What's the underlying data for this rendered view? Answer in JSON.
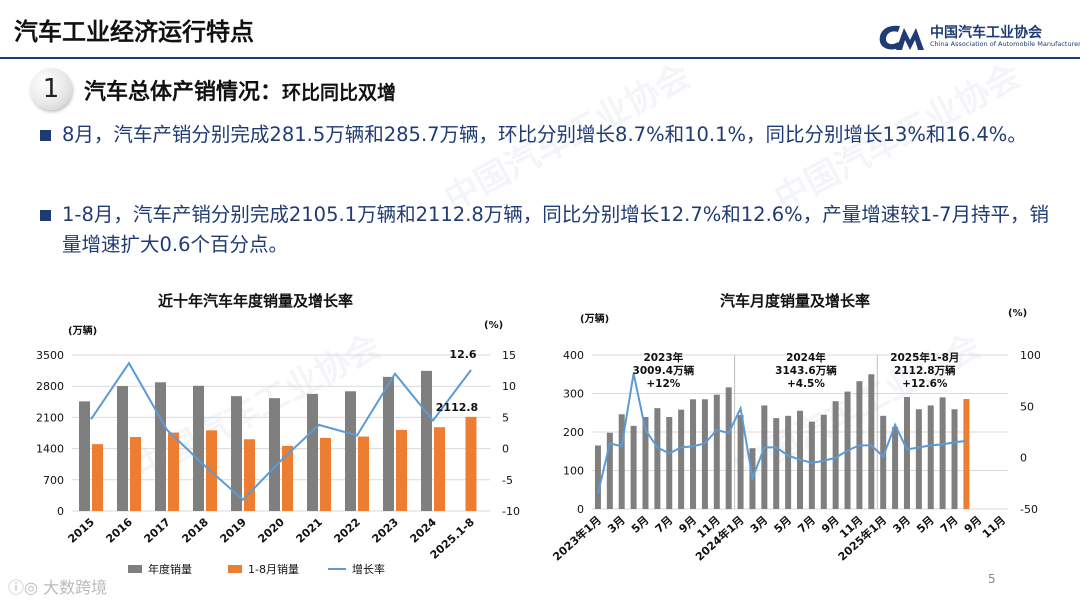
{
  "header": {
    "title": "汽车工业经济运行特点",
    "logo_cn": "中国汽车工业协会",
    "logo_en": "China Association of Automobile Manufacturers",
    "brand_color": "#1f3b73"
  },
  "section": {
    "number": "1",
    "title": "汽车总体产销情况：",
    "subtitle": "环比同比双增"
  },
  "bullets": [
    "8月，汽车产销分别完成281.5万辆和285.7万辆，环比分别增长8.7%和10.1%，同比分别增长13%和16.4%。",
    "1-8月，汽车产销分别完成2105.1万辆和2112.8万辆，同比分别增长12.7%和12.6%，产量增速较1-7月持平，销量增速扩大0.6个百分点。"
  ],
  "page_number": "5",
  "footer_watermark": "大数跨境",
  "colors": {
    "gray_bar": "#7f7f7f",
    "orange_bar": "#ed7d31",
    "line": "#5b9bd5",
    "highlight_bar": "#ed7d31"
  },
  "chart_data": [
    {
      "type": "bar",
      "title": "近十年汽车年度销量及增长率",
      "ylabel": "(万辆)",
      "y2label": "(%)",
      "ylim": [
        0,
        3500
      ],
      "y2lim": [
        -10,
        15
      ],
      "yticks": [
        "0",
        "700",
        "1400",
        "2100",
        "2800",
        "3500"
      ],
      "y2ticks": [
        "-10",
        "-5",
        "0",
        "5",
        "10",
        "15"
      ],
      "categories": [
        "2015",
        "2016",
        "2017",
        "2018",
        "2019",
        "2020",
        "2021",
        "2022",
        "2023",
        "2024",
        "2025.1-8"
      ],
      "series": [
        {
          "name": "年度销量",
          "kind": "bar",
          "color": "#7f7f7f",
          "values": [
            2460,
            2803,
            2888,
            2808,
            2577,
            2531,
            2628,
            2686,
            3009,
            3144,
            null
          ]
        },
        {
          "name": "1-8月销量",
          "kind": "bar",
          "color": "#ed7d31",
          "values": [
            1500,
            1660,
            1760,
            1810,
            1610,
            1460,
            1640,
            1670,
            1820,
            1880,
            2112.8
          ]
        },
        {
          "name": "增长率",
          "kind": "line",
          "axis": "y2",
          "color": "#5b9bd5",
          "values": [
            4.7,
            13.7,
            3.0,
            -2.8,
            -8.2,
            -1.9,
            3.8,
            2.1,
            12.0,
            4.5,
            12.6
          ]
        }
      ],
      "labels": {
        "last_bar": "2112.8",
        "last_rate": "12.6"
      },
      "legend": "bottom"
    },
    {
      "type": "bar",
      "title": "汽车月度销量及增长率",
      "ylabel": "(万辆)",
      "y2label": "(%)",
      "ylim": [
        0,
        400
      ],
      "y2lim": [
        -50,
        100
      ],
      "yticks": [
        "0",
        "100",
        "200",
        "300",
        "400"
      ],
      "y2ticks": [
        "-50",
        "0",
        "50",
        "100"
      ],
      "xtick_labels": [
        "2023年1月",
        "3月",
        "5月",
        "7月",
        "9月",
        "11月",
        "2024年1月",
        "3月",
        "5月",
        "7月",
        "9月",
        "11月",
        "2025年1月",
        "3月",
        "5月",
        "7月",
        "9月",
        "11月"
      ],
      "months": 35,
      "series": [
        {
          "name": "销量",
          "kind": "bar",
          "color": "#7f7f7f",
          "values": [
            165,
            198,
            246,
            216,
            239,
            262,
            239,
            258,
            285,
            285,
            297,
            316,
            244,
            158,
            269,
            236,
            242,
            255,
            227,
            245,
            280,
            305,
            332,
            350,
            242,
            213,
            291,
            259,
            269,
            290,
            259,
            285.7
          ]
        },
        {
          "name": "增长率",
          "kind": "line",
          "axis": "y2",
          "color": "#5b9bd5",
          "values": [
            -35,
            14,
            11,
            82,
            27,
            10,
            4,
            10,
            11,
            14,
            27,
            24,
            48,
            -20,
            10,
            10,
            2,
            -2,
            -5,
            -3,
            0,
            7,
            12,
            12,
            1,
            32,
            8,
            10,
            12,
            13,
            15,
            16.4
          ]
        }
      ],
      "annotations": [
        {
          "text": "2023年\n3009.4万辆\n+12%"
        },
        {
          "text": "2024年\n3143.6万辆\n+4.5%"
        },
        {
          "text": "2025年1-8月\n2112.8万辆\n+12.6%"
        }
      ]
    }
  ],
  "legend": {
    "annual": "年度销量",
    "ytd": "1-8月销量",
    "rate": "增长率"
  }
}
